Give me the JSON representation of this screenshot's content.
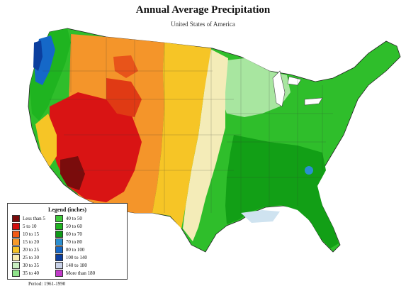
{
  "header": {
    "title": "Annual Average Precipitation",
    "subtitle": "United States of America"
  },
  "legend": {
    "title": "Legend (inches)",
    "items": [
      {
        "label": "Less than 5",
        "color": "#7a0c0c"
      },
      {
        "label": "5 to 10",
        "color": "#d40f0f"
      },
      {
        "label": "10 to 15",
        "color": "#f25a16"
      },
      {
        "label": "15 to 20",
        "color": "#f79a2a"
      },
      {
        "label": "20 to 25",
        "color": "#f6c326"
      },
      {
        "label": "25 to 30",
        "color": "#f6ecb0"
      },
      {
        "label": "30 to 35",
        "color": "#c9eec0"
      },
      {
        "label": "35 to 40",
        "color": "#8fe28a"
      },
      {
        "label": "40 to 50",
        "color": "#3fcb3a"
      },
      {
        "label": "50 to 60",
        "color": "#1fb420"
      },
      {
        "label": "60 to 70",
        "color": "#0f9a18"
      },
      {
        "label": "70 to 80",
        "color": "#2a8fd0"
      },
      {
        "label": "80 to 100",
        "color": "#1568c8"
      },
      {
        "label": "100 to 140",
        "color": "#0b3e9e"
      },
      {
        "label": "140 to 180",
        "color": "#c9d2e8"
      },
      {
        "label": "More than 180",
        "color": "#c03ac8"
      }
    ]
  },
  "footer": {
    "period": "Period: 1961-1990"
  }
}
